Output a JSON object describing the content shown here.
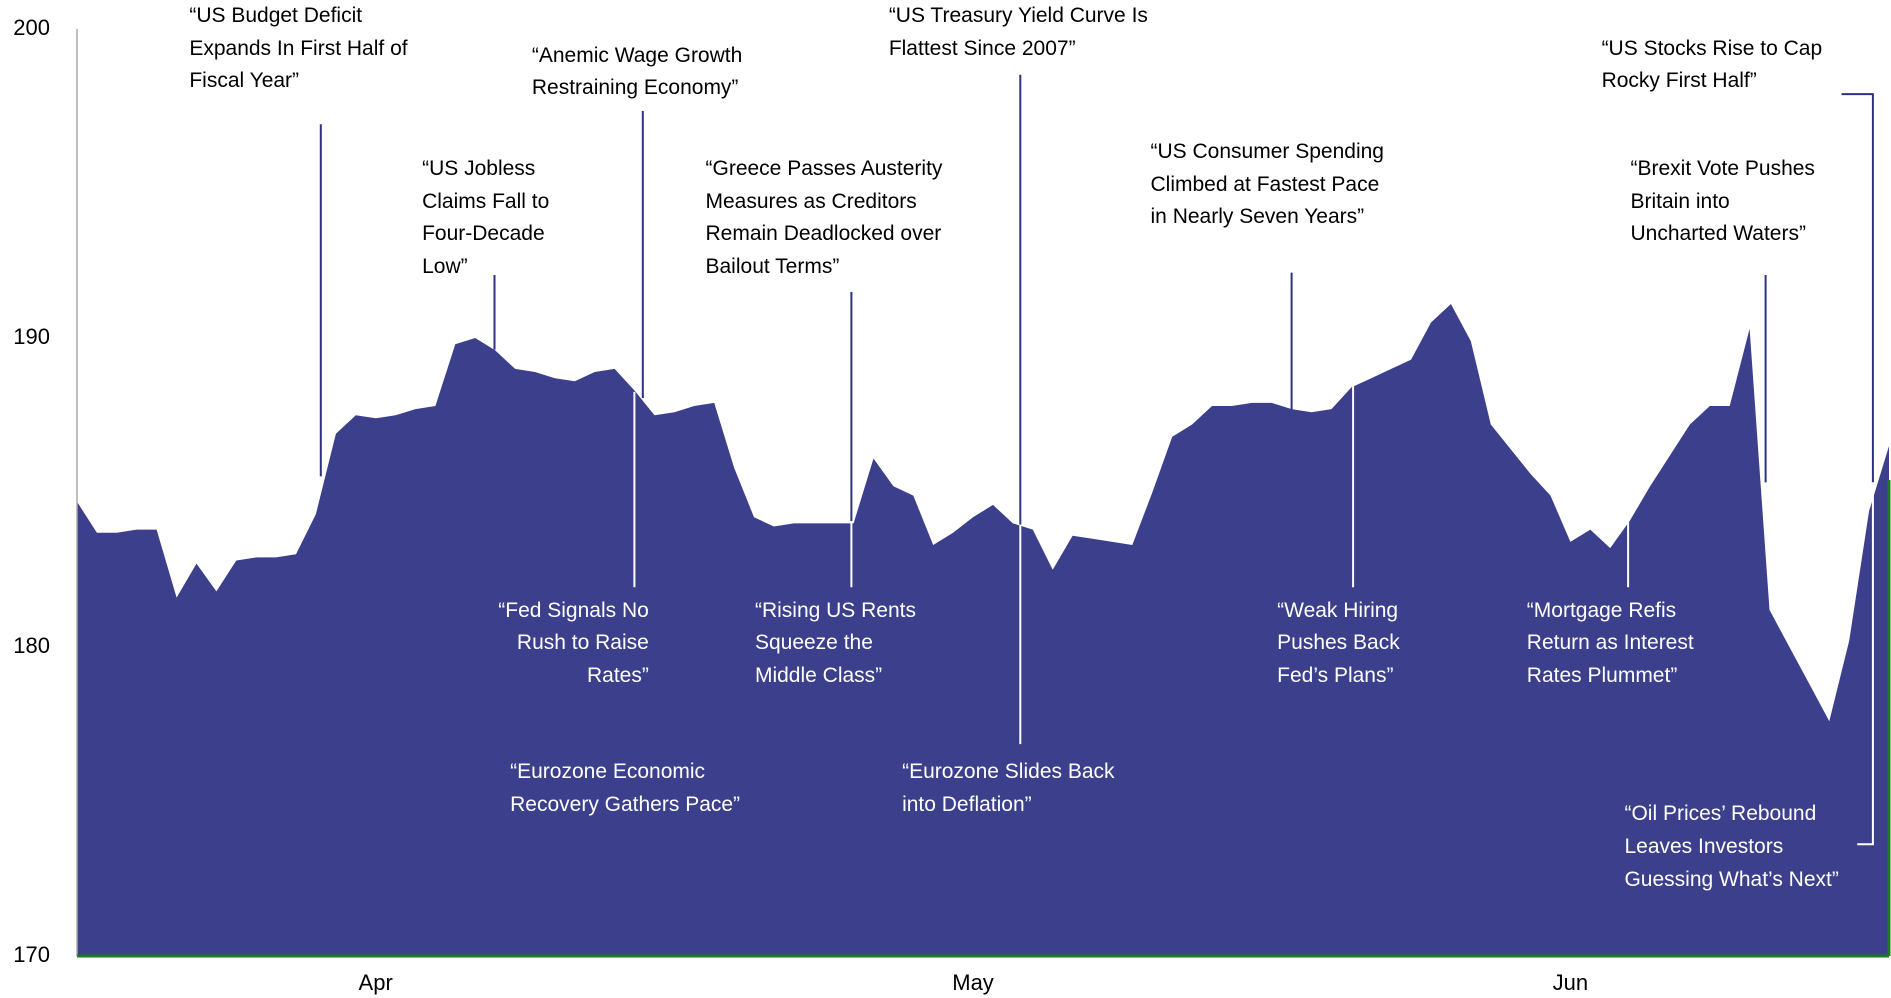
{
  "chart_data": {
    "type": "area",
    "color": "#3b3f8c",
    "grid": false,
    "ylim": [
      170,
      200
    ],
    "yticks": [
      170,
      180,
      190,
      200
    ],
    "categories": [
      null,
      null,
      null,
      null,
      null,
      null,
      null,
      null,
      null,
      null,
      null,
      null,
      null,
      null,
      null,
      "Apr",
      null,
      null,
      null,
      null,
      null,
      null,
      null,
      null,
      null,
      null,
      null,
      null,
      null,
      null,
      null,
      null,
      null,
      null,
      null,
      null,
      null,
      null,
      null,
      null,
      null,
      null,
      null,
      null,
      null,
      "May",
      null,
      null,
      null,
      null,
      null,
      null,
      null,
      null,
      null,
      null,
      null,
      null,
      null,
      null,
      null,
      null,
      null,
      null,
      null,
      null,
      null,
      null,
      null,
      null,
      null,
      null,
      null,
      null,
      null,
      "Jun",
      null,
      null,
      null,
      null,
      null,
      null,
      null,
      null,
      null,
      null,
      null,
      null,
      null,
      null,
      null,
      null
    ],
    "values": [
      184.7,
      183.7,
      183.7,
      183.8,
      183.8,
      181.6,
      182.7,
      181.8,
      182.8,
      182.9,
      182.9,
      183.0,
      184.3,
      186.9,
      187.5,
      187.4,
      187.5,
      187.7,
      187.8,
      189.8,
      190.0,
      189.6,
      189.0,
      188.9,
      188.7,
      188.6,
      188.9,
      189.0,
      188.3,
      187.5,
      187.6,
      187.8,
      187.9,
      185.8,
      184.2,
      183.9,
      184.0,
      184.0,
      184.0,
      184.0,
      186.1,
      185.2,
      184.9,
      183.3,
      183.7,
      184.2,
      184.6,
      184.0,
      183.8,
      182.5,
      183.6,
      183.5,
      183.4,
      183.3,
      185.0,
      186.8,
      187.2,
      187.8,
      187.8,
      187.9,
      187.9,
      187.7,
      187.6,
      187.7,
      188.4,
      188.7,
      189.0,
      189.3,
      190.5,
      191.1,
      189.9,
      187.2,
      186.4,
      185.6,
      184.9,
      183.4,
      183.8,
      183.2,
      184.1,
      185.2,
      186.2,
      187.2,
      187.8,
      187.8,
      190.3,
      181.2,
      180.0,
      178.8,
      177.6,
      180.2,
      184.4,
      186.5
    ],
    "annotations": [
      "“US Budget Deficit\nExpands In First Half of\nFiscal Year”",
      "“US Jobless\nClaims Fall to\nFour-Decade\nLow”",
      "“Anemic Wage Growth\nRestraining Economy”",
      "“Greece Passes Austerity\nMeasures as Creditors\nRemain Deadlocked over\nBailout Terms”",
      "“US Treasury Yield Curve Is\nFlattest Since 2007”",
      "“Fed Signals No\nRush to Raise\nRates”",
      "“Eurozone Economic\nRecovery Gathers Pace”",
      "“Rising US Rents\nSqueeze the\nMiddle Class”",
      "“Eurozone Slides Back\ninto Deflation”",
      "“US Consumer Spending\nClimbed at Fastest Pace\nin Nearly Seven Years”",
      "“Weak Hiring\nPushes Back\nFed’s Plans”",
      "“US Stocks Rise to Cap\nRocky First Half”",
      "“Brexit Vote Pushes\nBritain into\nUncharted Waters”",
      "“Mortgage Refis\nReturn as Interest\nRates Plummet”",
      "“Oil Prices’ Rebound\nLeaves Investors\nGuessing What’s Next”"
    ]
  }
}
